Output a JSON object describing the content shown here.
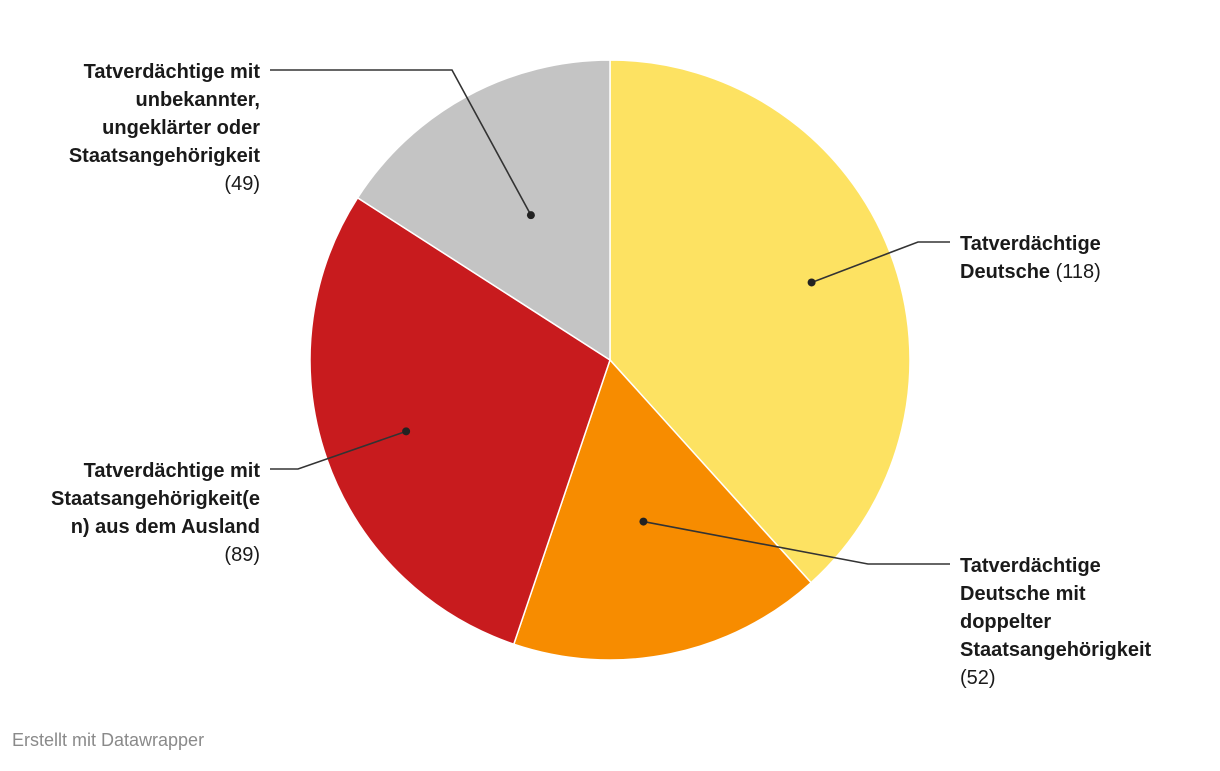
{
  "chart_data": {
    "type": "pie",
    "slices": [
      {
        "name_lines": [
          "Tatverdächtige",
          "Deutsche"
        ],
        "value": 118,
        "value_text": "(118)",
        "color": "#fde262"
      },
      {
        "name_lines": [
          "Tatverdächtige",
          "Deutsche mit",
          "doppelter",
          "Staatsangehörigkeit"
        ],
        "value": 52,
        "value_text": "(52)",
        "color": "#f78c00"
      },
      {
        "name_lines": [
          "Tatverdächtige mit",
          "Staatsangehörigkeit(e",
          "n) aus dem Ausland"
        ],
        "value": 89,
        "value_text": "(89)",
        "color": "#c81b1e"
      },
      {
        "name_lines": [
          "Tatverdächtige mit",
          "unbekannter,",
          "ungeklärter oder",
          "Staatsangehörigkeit"
        ],
        "value": 49,
        "value_text": "(49)",
        "color": "#c4c4c4"
      }
    ]
  },
  "footer": {
    "credit": "Erstellt mit Datawrapper"
  }
}
